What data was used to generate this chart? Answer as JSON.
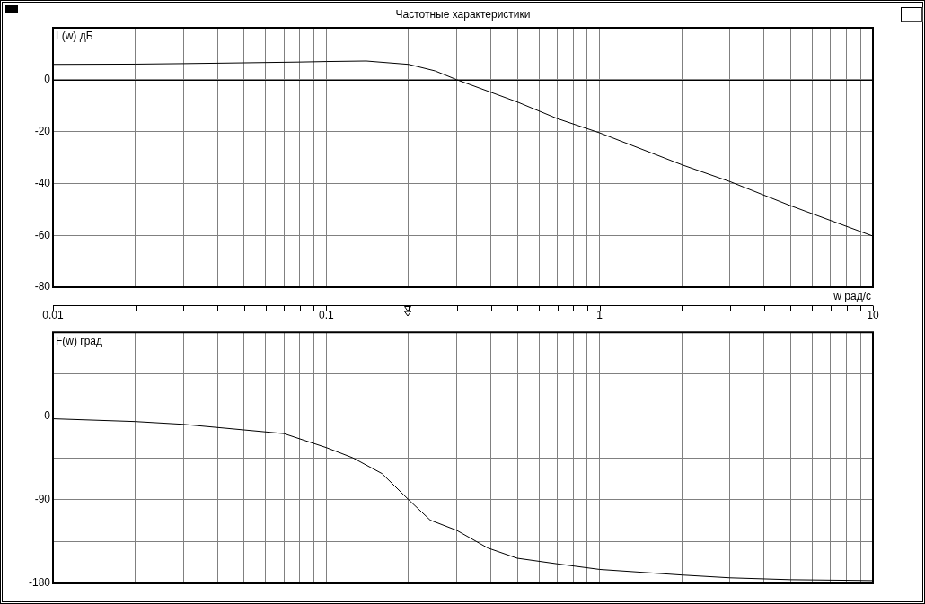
{
  "chart_data": [
    {
      "type": "line",
      "title": "Частотные характеристики",
      "xlabel": "w рад/с",
      "ylabel": "L(w) дБ",
      "log": "x",
      "grid": true,
      "marker": "none",
      "xlim": [
        0.01,
        10
      ],
      "ylim": [
        -80,
        20
      ],
      "xticks": [
        0.01,
        {
          "value": 0.02,
          "label": null
        },
        {
          "value": 0.03,
          "label": null
        },
        {
          "value": 0.04,
          "label": null
        },
        {
          "value": 0.05,
          "label": null
        },
        {
          "value": 0.06,
          "label": null
        },
        {
          "value": 0.07,
          "label": null
        },
        {
          "value": 0.08,
          "label": null
        },
        {
          "value": 0.09,
          "label": null
        },
        0.1,
        {
          "value": 0.2,
          "label": null
        },
        {
          "value": 0.3,
          "label": null
        },
        {
          "value": 0.4,
          "label": null
        },
        {
          "value": 0.5,
          "label": null
        },
        {
          "value": 0.6,
          "label": null
        },
        {
          "value": 0.7,
          "label": null
        },
        {
          "value": 0.8,
          "label": null
        },
        {
          "value": 0.9,
          "label": null
        },
        1,
        {
          "value": 2,
          "label": null
        },
        {
          "value": 3,
          "label": null
        },
        {
          "value": 4,
          "label": null
        },
        {
          "value": 5,
          "label": null
        },
        {
          "value": 6,
          "label": null
        },
        {
          "value": 7,
          "label": null
        },
        {
          "value": 8,
          "label": null
        },
        {
          "value": 9,
          "label": null
        },
        10
      ],
      "yticks": [
        -80,
        -60,
        -40,
        -20,
        0,
        {
          "value": 20,
          "label": null
        }
      ],
      "ref_lines": [
        {
          "axis": "y",
          "value": 0,
          "color": "#000000"
        }
      ],
      "x": [
        0.01,
        0.02,
        0.03,
        0.05,
        0.08,
        0.1,
        0.14,
        0.2,
        0.25,
        0.3,
        0.5,
        0.7,
        1,
        2,
        3,
        5,
        10
      ],
      "series": [
        {
          "color": "#000000",
          "values": [
            5.9,
            6,
            6.2,
            6.5,
            6.8,
            7,
            7.2,
            5.9,
            3.4,
            0,
            -8.6,
            -15,
            -20.5,
            -32.8,
            -39.3,
            -48.6,
            -60.3
          ]
        }
      ]
    },
    {
      "type": "line",
      "ylabel": "F(w) град",
      "log": "x",
      "grid": true,
      "marker": "none",
      "tick_labels": "y",
      "xlim": [
        0.01,
        10
      ],
      "ylim": [
        -180,
        90
      ],
      "xticks": [
        0.01,
        {
          "value": 0.02,
          "label": null
        },
        {
          "value": 0.03,
          "label": null
        },
        {
          "value": 0.04,
          "label": null
        },
        {
          "value": 0.05,
          "label": null
        },
        {
          "value": 0.06,
          "label": null
        },
        {
          "value": 0.07,
          "label": null
        },
        {
          "value": 0.08,
          "label": null
        },
        {
          "value": 0.09,
          "label": null
        },
        0.1,
        {
          "value": 0.2,
          "label": null
        },
        {
          "value": 0.3,
          "label": null
        },
        {
          "value": 0.4,
          "label": null
        },
        {
          "value": 0.5,
          "label": null
        },
        {
          "value": 0.6,
          "label": null
        },
        {
          "value": 0.7,
          "label": null
        },
        {
          "value": 0.8,
          "label": null
        },
        {
          "value": 0.9,
          "label": null
        },
        1,
        {
          "value": 2,
          "label": null
        },
        {
          "value": 3,
          "label": null
        },
        {
          "value": 4,
          "label": null
        },
        {
          "value": 5,
          "label": null
        },
        {
          "value": 6,
          "label": null
        },
        {
          "value": 7,
          "label": null
        },
        {
          "value": 8,
          "label": null
        },
        {
          "value": 9,
          "label": null
        },
        10
      ],
      "yticks": [
        -180,
        {
          "value": -135,
          "label": null
        },
        -90,
        {
          "value": -45,
          "label": null
        },
        0,
        {
          "value": 45,
          "label": null
        },
        {
          "value": 90,
          "label": null
        }
      ],
      "ref_lines": [
        {
          "axis": "y",
          "value": 0,
          "color": "#000000"
        }
      ],
      "x": [
        0.01,
        0.02,
        0.03,
        0.05,
        0.07,
        0.1,
        0.125,
        0.16,
        0.2,
        0.24,
        0.3,
        0.39,
        0.5,
        0.7,
        1,
        2,
        3,
        5,
        10
      ],
      "series": [
        {
          "color": "#000000",
          "values": [
            -3,
            -6,
            -9,
            -15,
            -19,
            -34,
            -45,
            -62,
            -90,
            -112,
            -123,
            -142,
            -153,
            -159,
            -165,
            -171,
            -174,
            -176,
            -177
          ]
        }
      ]
    }
  ]
}
